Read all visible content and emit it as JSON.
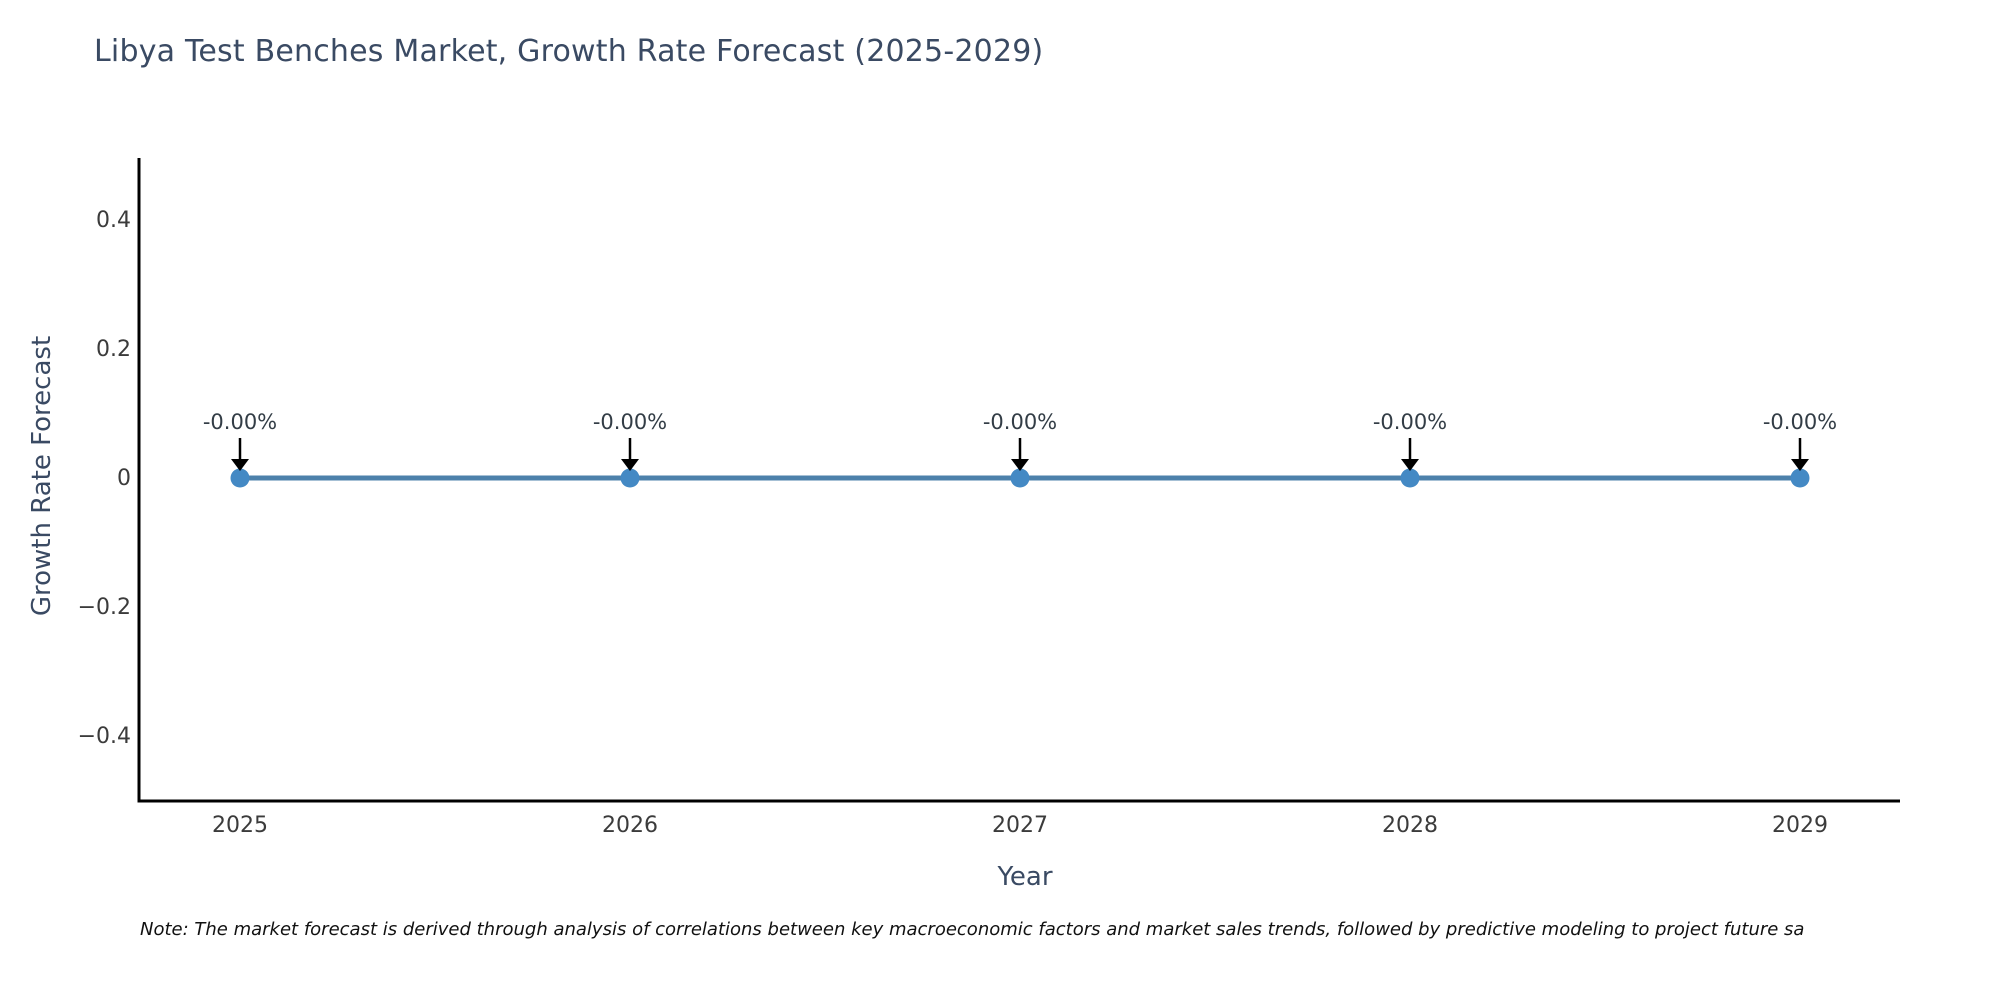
{
  "chart": {
    "title": "Libya Test Benches Market, Growth Rate Forecast (2025-2029)",
    "xlabel": "Year",
    "ylabel": "Growth Rate Forecast",
    "note": "Note: The market forecast is derived through analysis of correlations between key macroeconomic factors and market sales trends, followed by predictive modeling to project future sa"
  },
  "chart_data": {
    "type": "line",
    "title": "Libya Test Benches Market, Growth Rate Forecast (2025-2029)",
    "xlabel": "Year",
    "ylabel": "Growth Rate Forecast",
    "x": [
      2025,
      2026,
      2027,
      2028,
      2029
    ],
    "series": [
      {
        "name": "Growth Rate Forecast",
        "values": [
          0,
          0,
          0,
          0,
          0
        ]
      }
    ],
    "point_labels": [
      "-0.00%",
      "-0.00%",
      "-0.00%",
      "-0.00%",
      "-0.00%"
    ],
    "xticks": [
      "2025",
      "2026",
      "2027",
      "2028",
      "2029"
    ],
    "yticks": [
      {
        "value": 0.4,
        "label": "0.4"
      },
      {
        "value": 0.2,
        "label": "0.2"
      },
      {
        "value": 0,
        "label": "0"
      },
      {
        "value": -0.2,
        "label": "−0.2"
      },
      {
        "value": -0.4,
        "label": "−0.4"
      }
    ],
    "ylim": [
      -0.5,
      0.5
    ],
    "grid": false,
    "legend": "none",
    "marker": "circle",
    "annotation_arrow": "down-arrow",
    "colors": {
      "line": "#4d81ab",
      "marker": "#4489c4",
      "spine": "#000000",
      "tick_label": "#3b3b3b",
      "title": "#3a4a63",
      "axis_label": "#3a4a63",
      "annotation": "#333d46",
      "arrow": "#000000",
      "note": "#111111",
      "background": "#ffffff"
    }
  }
}
